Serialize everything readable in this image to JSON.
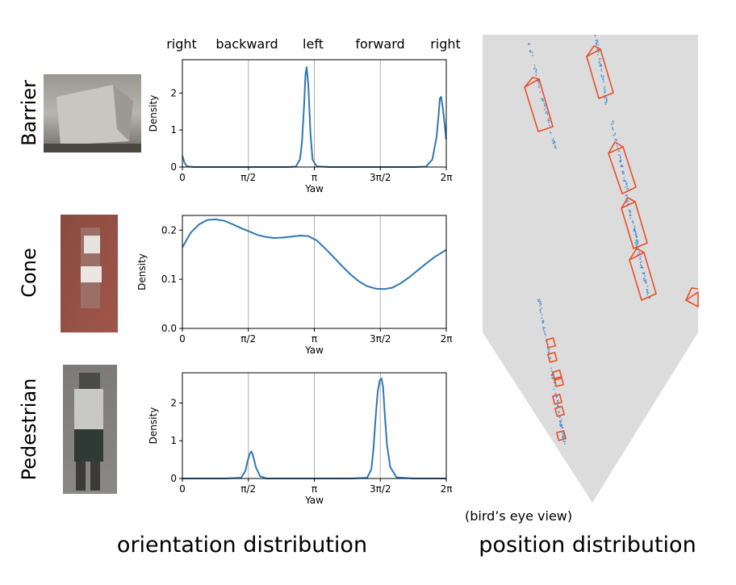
{
  "direction_labels": [
    "right",
    "backward",
    "left",
    "forward",
    "right"
  ],
  "captions": {
    "orientation": "orientation distribution",
    "position": "position distribution",
    "bev_note": "(bird’s eye view)"
  },
  "colors": {
    "curve": "#2e77b4",
    "box": "#e8502a",
    "bev_background": "#dcdcdc",
    "grid": "#b0b0b0"
  },
  "chart_data": [
    {
      "type": "line",
      "row_label": "Barrier",
      "thumbnail": "barrier-photo",
      "xlabel": "Yaw",
      "ylabel": "Density",
      "xlim": [
        0,
        6.2832
      ],
      "ylim": [
        0,
        2.9
      ],
      "xticks": [
        "0",
        "π/2",
        "π",
        "3π/2",
        "2π"
      ],
      "yticks": [
        "0",
        "1",
        "2"
      ],
      "x": [
        0,
        0.05,
        0.1,
        0.15,
        0.3,
        0.5,
        1.0,
        1.5,
        2.0,
        2.5,
        2.7,
        2.8,
        2.85,
        2.9,
        2.93,
        2.96,
        3.0,
        3.05,
        3.1,
        3.2,
        3.5,
        4.0,
        4.5,
        5.0,
        5.5,
        5.8,
        5.95,
        6.05,
        6.1,
        6.13,
        6.16,
        6.2,
        6.25,
        6.28
      ],
      "y": [
        0.3,
        0.12,
        0.03,
        0.01,
        0,
        0,
        0,
        0,
        0,
        0,
        0.01,
        0.2,
        0.7,
        1.7,
        2.5,
        2.7,
        2.2,
        0.9,
        0.2,
        0.02,
        0,
        0,
        0,
        0,
        0,
        0.01,
        0.2,
        0.8,
        1.4,
        1.85,
        1.9,
        1.6,
        1.1,
        0.75
      ],
      "gridlines_x": [
        1.5708,
        3.1416,
        4.7124
      ]
    },
    {
      "type": "line",
      "row_label": "Cone",
      "thumbnail": "cone-photo",
      "xlabel": "Yaw",
      "ylabel": "Density",
      "xlim": [
        0,
        6.2832
      ],
      "ylim": [
        0,
        0.23
      ],
      "xticks": [
        "0",
        "π/2",
        "π",
        "3π/2",
        "2π"
      ],
      "yticks": [
        "0.0",
        "0.1",
        "0.2"
      ],
      "x": [
        0,
        0.2,
        0.4,
        0.6,
        0.8,
        1.0,
        1.2,
        1.4,
        1.6,
        1.8,
        2.0,
        2.2,
        2.4,
        2.6,
        2.8,
        3.0,
        3.2,
        3.4,
        3.6,
        3.8,
        4.0,
        4.2,
        4.4,
        4.6,
        4.8,
        5.0,
        5.2,
        5.4,
        5.6,
        5.8,
        6.0,
        6.2832
      ],
      "y": [
        0.165,
        0.195,
        0.212,
        0.221,
        0.222,
        0.219,
        0.212,
        0.204,
        0.197,
        0.19,
        0.186,
        0.184,
        0.185,
        0.187,
        0.189,
        0.188,
        0.179,
        0.163,
        0.145,
        0.127,
        0.11,
        0.096,
        0.086,
        0.081,
        0.08,
        0.083,
        0.092,
        0.104,
        0.118,
        0.132,
        0.145,
        0.16
      ],
      "gridlines_x": [
        1.5708,
        3.1416,
        4.7124
      ]
    },
    {
      "type": "line",
      "row_label": "Pedestrian",
      "thumbnail": "pedestrian-photo",
      "xlabel": "Yaw",
      "ylabel": "Density",
      "xlim": [
        0,
        6.2832
      ],
      "ylim": [
        0,
        2.8
      ],
      "xticks": [
        "0",
        "π/2",
        "π",
        "3π/2",
        "2π"
      ],
      "yticks": [
        "0",
        "1",
        "2"
      ],
      "x": [
        0,
        1.0,
        1.4,
        1.5,
        1.55,
        1.6,
        1.64,
        1.68,
        1.75,
        1.85,
        2.0,
        3.0,
        4.0,
        4.4,
        4.5,
        4.55,
        4.6,
        4.65,
        4.7,
        4.74,
        4.78,
        4.82,
        4.87,
        4.95,
        5.1,
        5.5,
        6.2832
      ],
      "y": [
        0,
        0,
        0.02,
        0.2,
        0.45,
        0.65,
        0.72,
        0.62,
        0.3,
        0.06,
        0,
        0,
        0,
        0.02,
        0.25,
        0.8,
        1.6,
        2.3,
        2.6,
        2.65,
        2.4,
        1.7,
        0.9,
        0.3,
        0.03,
        0,
        0
      ],
      "gridlines_x": [
        1.5708,
        3.1416,
        4.7124
      ]
    }
  ],
  "bev": {
    "icon": "bird-eye-view-map"
  }
}
